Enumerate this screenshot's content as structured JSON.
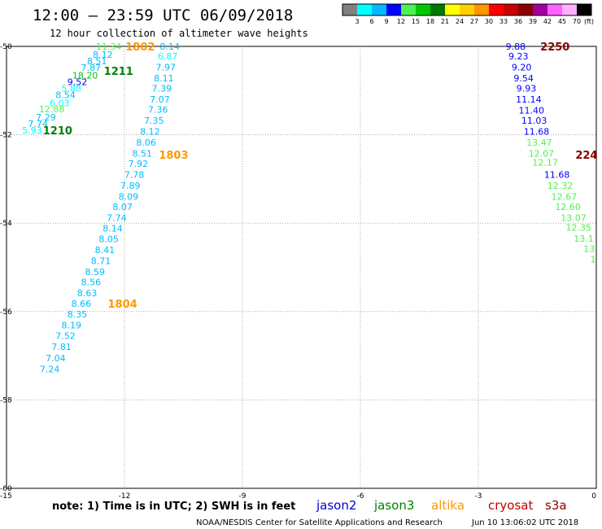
{
  "header": {
    "title": "12:00 – 23:59 UTC 06/09/2018",
    "subtitle": "12 hour collection of altimeter wave heights"
  },
  "colorbar": {
    "labels": [
      "3",
      "6",
      "9",
      "12",
      "15",
      "18",
      "21",
      "24",
      "27",
      "30",
      "33",
      "36",
      "39",
      "42",
      "45",
      "70"
    ],
    "unit": "(ft)",
    "colors": [
      "#808080",
      "#00ffff",
      "#00bbff",
      "#0000ff",
      "#50f050",
      "#00c800",
      "#007800",
      "#ffff00",
      "#ffd000",
      "#ff9600",
      "#ff0000",
      "#c80000",
      "#8c0000",
      "#a000a0",
      "#ff60ff",
      "#ffb0ff",
      "#000000"
    ]
  },
  "footer": {
    "note": "note: 1) Time is in UTC; 2) SWH is in feet",
    "satellites": [
      {
        "name": "jason2",
        "color": "#0000d0"
      },
      {
        "name": "jason3",
        "color": "#008000"
      },
      {
        "name": "altika",
        "color": "#ff9900"
      },
      {
        "name": "cryosat",
        "color": "#c00000"
      },
      {
        "name": "s3a",
        "color": "#8b0000"
      }
    ],
    "credit": "NOAA/NESDIS Center for Satellite Applications and Research",
    "timestamp": "Jun 10 13:06:02 UTC 2018"
  },
  "chart_data": {
    "type": "scatter",
    "title": "12:00 – 23:59 UTC 06/09/2018",
    "subtitle": "12 hour collection of altimeter wave heights",
    "xlim": [
      -15,
      0
    ],
    "ylim": [
      -60,
      -50
    ],
    "x_ticks": [
      -15,
      -12,
      -9,
      -6,
      -3,
      0
    ],
    "y_ticks": [
      -50,
      -52,
      -54,
      -56,
      -58,
      -60
    ],
    "grid": "dotted",
    "series": [
      {
        "name": "jason3",
        "points": [
          {
            "x": -12.4,
            "y": -50.0,
            "v": "11.34",
            "color": "#50f050"
          },
          {
            "x": -12.55,
            "y": -50.18,
            "v": "8.12",
            "color": "#00bbff"
          },
          {
            "x": -12.7,
            "y": -50.33,
            "v": "8.51",
            "color": "#00bbff"
          },
          {
            "x": -12.85,
            "y": -50.48,
            "v": "7.87",
            "color": "#00bbff"
          },
          {
            "x": -13.0,
            "y": -50.65,
            "v": "18.20",
            "color": "#00c800"
          },
          {
            "x": -13.2,
            "y": -50.8,
            "v": "9.52",
            "color": "#0000ff"
          },
          {
            "x": -13.35,
            "y": -50.95,
            "v": "5.88",
            "color": "#00ffff"
          },
          {
            "x": -13.5,
            "y": -51.1,
            "v": "8.54",
            "color": "#00bbff"
          },
          {
            "x": -13.65,
            "y": -51.28,
            "v": "6.03",
            "color": "#00ffff"
          },
          {
            "x": -13.85,
            "y": -51.42,
            "v": "12.88",
            "color": "#50f050"
          },
          {
            "x": -14.0,
            "y": -51.6,
            "v": "7.29",
            "color": "#00bbff"
          },
          {
            "x": -14.2,
            "y": -51.75,
            "v": "7.74",
            "color": "#00bbff"
          },
          {
            "x": -14.35,
            "y": -51.9,
            "v": "5.93",
            "color": "#00ffff"
          }
        ]
      },
      {
        "name": "altika",
        "points": [
          {
            "x": -10.85,
            "y": -50.0,
            "v": "8.14",
            "color": "#00bbff"
          },
          {
            "x": -10.9,
            "y": -50.22,
            "v": "6.87",
            "color": "#00ffff"
          },
          {
            "x": -10.95,
            "y": -50.47,
            "v": "7.97",
            "color": "#00bbff"
          },
          {
            "x": -11.0,
            "y": -50.72,
            "v": "8.11",
            "color": "#00bbff"
          },
          {
            "x": -11.05,
            "y": -50.95,
            "v": "7.39",
            "color": "#00bbff"
          },
          {
            "x": -11.1,
            "y": -51.2,
            "v": "7.07",
            "color": "#00bbff"
          },
          {
            "x": -11.15,
            "y": -51.43,
            "v": "7.36",
            "color": "#00bbff"
          },
          {
            "x": -11.25,
            "y": -51.68,
            "v": "7.35",
            "color": "#00bbff"
          },
          {
            "x": -11.35,
            "y": -51.92,
            "v": "8.12",
            "color": "#00bbff"
          },
          {
            "x": -11.45,
            "y": -52.17,
            "v": "8.06",
            "color": "#00bbff"
          },
          {
            "x": -11.55,
            "y": -52.42,
            "v": "8.51",
            "color": "#00bbff"
          },
          {
            "x": -11.65,
            "y": -52.65,
            "v": "7.92",
            "color": "#00bbff"
          },
          {
            "x": -11.75,
            "y": -52.9,
            "v": "7.78",
            "color": "#00bbff"
          },
          {
            "x": -11.85,
            "y": -53.15,
            "v": "7.89",
            "color": "#00bbff"
          },
          {
            "x": -11.9,
            "y": -53.4,
            "v": "8.09",
            "color": "#00bbff"
          },
          {
            "x": -12.05,
            "y": -53.63,
            "v": "8.07",
            "color": "#00bbff"
          },
          {
            "x": -12.2,
            "y": -53.88,
            "v": "7.74",
            "color": "#00bbff"
          },
          {
            "x": -12.3,
            "y": -54.12,
            "v": "8.14",
            "color": "#00bbff"
          },
          {
            "x": -12.4,
            "y": -54.36,
            "v": "8.05",
            "color": "#00bbff"
          },
          {
            "x": -12.5,
            "y": -54.6,
            "v": "8.41",
            "color": "#00bbff"
          },
          {
            "x": -12.6,
            "y": -54.85,
            "v": "8.71",
            "color": "#00bbff"
          },
          {
            "x": -12.75,
            "y": -55.1,
            "v": "8.59",
            "color": "#00bbff"
          },
          {
            "x": -12.85,
            "y": -55.33,
            "v": "8.56",
            "color": "#00bbff"
          },
          {
            "x": -12.95,
            "y": -55.58,
            "v": "8.63",
            "color": "#00bbff"
          },
          {
            "x": -13.1,
            "y": -55.82,
            "v": "8.66",
            "color": "#00bbff"
          },
          {
            "x": -13.2,
            "y": -56.06,
            "v": "8.35",
            "color": "#00bbff"
          },
          {
            "x": -13.35,
            "y": -56.31,
            "v": "8.19",
            "color": "#00bbff"
          },
          {
            "x": -13.5,
            "y": -56.55,
            "v": "7.52",
            "color": "#00bbff"
          },
          {
            "x": -13.6,
            "y": -56.8,
            "v": "7.81",
            "color": "#00bbff"
          },
          {
            "x": -13.75,
            "y": -57.05,
            "v": "7.04",
            "color": "#00bbff"
          },
          {
            "x": -13.9,
            "y": -57.3,
            "v": "7.24",
            "color": "#00bbff"
          }
        ]
      },
      {
        "name": "s3a",
        "points": [
          {
            "x": -2.05,
            "y": -50.0,
            "v": "9.88",
            "color": "#0000ff"
          },
          {
            "x": -1.98,
            "y": -50.22,
            "v": "9.23",
            "color": "#0000ff"
          },
          {
            "x": -1.9,
            "y": -50.47,
            "v": "9.20",
            "color": "#0000ff"
          },
          {
            "x": -1.85,
            "y": -50.72,
            "v": "9.54",
            "color": "#0000ff"
          },
          {
            "x": -1.78,
            "y": -50.95,
            "v": "9.93",
            "color": "#0000ff"
          },
          {
            "x": -1.72,
            "y": -51.2,
            "v": "11.14",
            "color": "#0000ff"
          },
          {
            "x": -1.65,
            "y": -51.45,
            "v": "11.40",
            "color": "#0000ff"
          },
          {
            "x": -1.58,
            "y": -51.68,
            "v": "11.03",
            "color": "#0000ff"
          },
          {
            "x": -1.52,
            "y": -51.92,
            "v": "11.68",
            "color": "#0000ff"
          },
          {
            "x": -1.45,
            "y": -52.17,
            "v": "13.47",
            "color": "#50f050"
          },
          {
            "x": -1.4,
            "y": -52.42,
            "v": "12.07",
            "color": "#50f050"
          },
          {
            "x": -1.3,
            "y": -52.62,
            "v": "12.17",
            "color": "#50f050"
          },
          {
            "x": -1.0,
            "y": -52.9,
            "v": "11.68",
            "color": "#0000ff"
          },
          {
            "x": -0.92,
            "y": -53.15,
            "v": "12.32",
            "color": "#50f050"
          },
          {
            "x": -0.82,
            "y": -53.4,
            "v": "12.67",
            "color": "#50f050"
          },
          {
            "x": -0.72,
            "y": -53.63,
            "v": "12.60",
            "color": "#50f050"
          },
          {
            "x": -0.58,
            "y": -53.88,
            "v": "13.07",
            "color": "#50f050"
          },
          {
            "x": -0.45,
            "y": -54.1,
            "v": "12.35",
            "color": "#50f050"
          },
          {
            "x": -0.32,
            "y": -54.35,
            "v": "13.1",
            "color": "#50f050"
          },
          {
            "x": -0.18,
            "y": -54.58,
            "v": "13",
            "color": "#50f050"
          },
          {
            "x": -0.08,
            "y": -54.82,
            "v": "1",
            "color": "#50f050"
          }
        ]
      }
    ],
    "pass_labels": [
      {
        "x": -11.6,
        "y": -50.0,
        "text": "1802",
        "color": "#ff9900"
      },
      {
        "x": -12.15,
        "y": -50.55,
        "text": "1211",
        "color": "#008000"
      },
      {
        "x": -13.7,
        "y": -51.9,
        "text": "1210",
        "color": "#008000"
      },
      {
        "x": -10.75,
        "y": -52.45,
        "text": "1803",
        "color": "#ff9900"
      },
      {
        "x": -12.05,
        "y": -55.82,
        "text": "1804",
        "color": "#ff9900"
      },
      {
        "x": -1.05,
        "y": -50.0,
        "text": "2250",
        "color": "#8b0000"
      },
      {
        "x": -0.25,
        "y": -52.45,
        "text": "224",
        "color": "#8b0000"
      }
    ]
  }
}
